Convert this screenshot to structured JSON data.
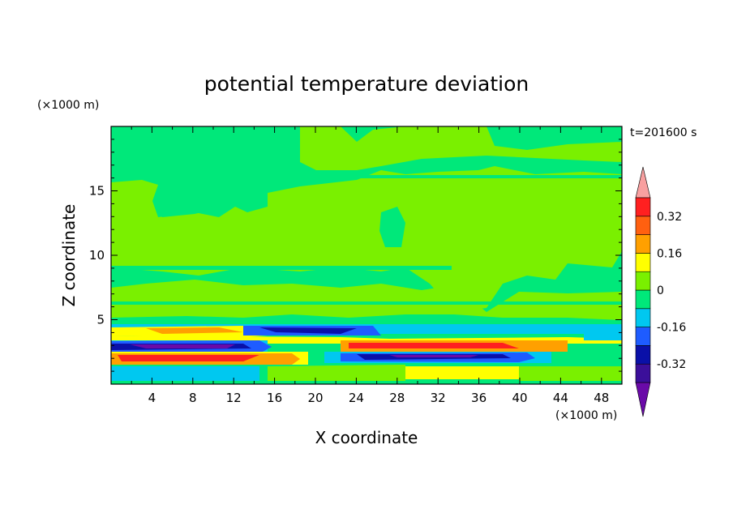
{
  "chart_data": {
    "type": "heatmap",
    "title": "potential temperature deviation",
    "xlabel": "X coordinate",
    "ylabel": "Z coordinate",
    "x_unit": "(×1000 m)",
    "y_unit": "(×1000 m)",
    "time_label": "t=201600 s",
    "xlim": [
      0,
      50
    ],
    "ylim": [
      0,
      20
    ],
    "x_ticks": [
      4,
      8,
      12,
      16,
      20,
      24,
      28,
      32,
      36,
      40,
      44,
      48
    ],
    "y_ticks": [
      5,
      10,
      15
    ],
    "colorbar": {
      "levels": [
        -0.4,
        -0.32,
        -0.24,
        -0.16,
        -0.08,
        0,
        0.08,
        0.16,
        0.24,
        0.32,
        0.4
      ],
      "colors": [
        "#6a0aa8",
        "#3b0f9a",
        "#0a10a8",
        "#1e5cff",
        "#00c8f0",
        "#00e87a",
        "#7af000",
        "#ffff00",
        "#ffa000",
        "#ff6010",
        "#ff2020",
        "#f8a0a0"
      ],
      "tick_labels": [
        "0.32",
        "0.16",
        "0",
        "-0.16",
        "-0.32"
      ],
      "tick_values": [
        0.32,
        0.16,
        0,
        -0.16,
        -0.32
      ]
    }
  }
}
